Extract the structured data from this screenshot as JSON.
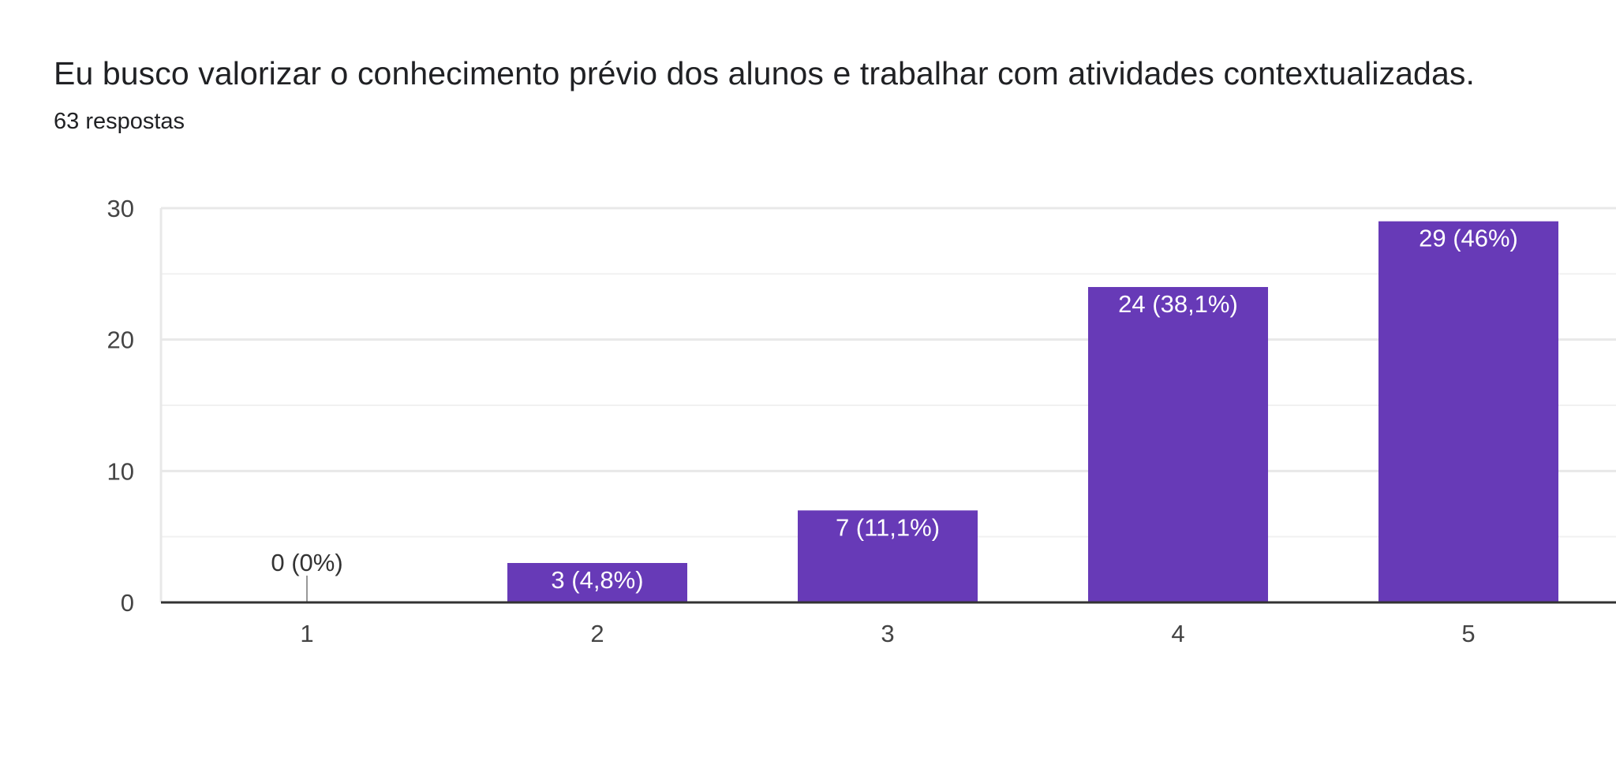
{
  "header": {
    "title": "Eu busco valorizar o conhecimento prévio dos alunos e trabalhar com atividades contextualizadas.",
    "responses": "63 respostas"
  },
  "colors": {
    "bar": "#673ab7",
    "grid": "#e8e8e8",
    "minor_grid": "#f1f1f1",
    "axis": "#333333",
    "text": "#444444",
    "label_inside": "#ffffff",
    "label_outside": "#333333"
  },
  "chart_data": {
    "type": "bar",
    "title": "Eu busco valorizar o conhecimento prévio dos alunos e trabalhar com atividades contextualizadas.",
    "subtitle": "63 respostas",
    "categories": [
      "1",
      "2",
      "3",
      "4",
      "5"
    ],
    "values": [
      0,
      3,
      7,
      24,
      29
    ],
    "data_labels": [
      "0 (0%)",
      "3 (4,8%)",
      "7 (11,1%)",
      "24 (38,1%)",
      "29 (46%)"
    ],
    "y_ticks": [
      0,
      10,
      20,
      30
    ],
    "ylim": [
      0,
      30
    ],
    "xlabel": "",
    "ylabel": "",
    "grid": true,
    "legend": "none"
  }
}
